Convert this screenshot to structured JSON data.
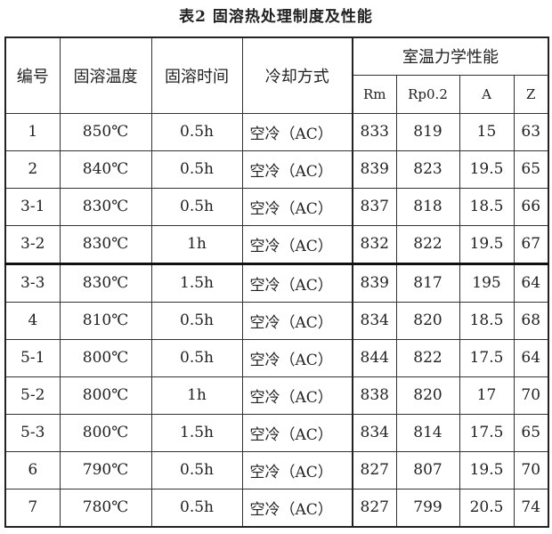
{
  "title": "表2 固溶热处理制度及性能",
  "headers": {
    "id": "编号",
    "temp": "固溶温度",
    "time": "固溶时间",
    "cooling": "冷却方式",
    "props": "室温力学性能",
    "rm": "Rm",
    "rp": "Rp0.2",
    "a": "A",
    "z": "Z"
  },
  "rows": [
    [
      "1",
      "850℃",
      "0.5h",
      "空冷（AC）",
      "833",
      "819",
      "15",
      "63"
    ],
    [
      "2",
      "840℃",
      "0.5h",
      "空冷（AC）",
      "839",
      "823",
      "19.5",
      "65"
    ],
    [
      "3-1",
      "830℃",
      "0.5h",
      "空冷（AC）",
      "837",
      "818",
      "18.5",
      "66"
    ],
    [
      "3-2",
      "830℃",
      "1h",
      "空冷（AC）",
      "832",
      "822",
      "19.5",
      "67"
    ],
    [
      "3-3",
      "830℃",
      "1.5h",
      "空冷（AC）",
      "839",
      "817",
      "195",
      "64"
    ],
    [
      "4",
      "810℃",
      "0.5h",
      "空冷（AC）",
      "834",
      "820",
      "18.5",
      "68"
    ],
    [
      "5-1",
      "800℃",
      "0.5h",
      "空冷（AC）",
      "844",
      "822",
      "17.5",
      "64"
    ],
    [
      "5-2",
      "800℃",
      "1h",
      "空冷（AC）",
      "838",
      "820",
      "17",
      "70"
    ],
    [
      "5-3",
      "800℃",
      "1.5h",
      "空冷（AC）",
      "834",
      "814",
      "17.5",
      "65"
    ],
    [
      "6",
      "790℃",
      "0.5h",
      "空冷（AC）",
      "827",
      "807",
      "19.5",
      "70"
    ],
    [
      "7",
      "780℃",
      "0.5h",
      "空冷（AC）",
      "827",
      "799",
      "20.5",
      "74"
    ]
  ]
}
